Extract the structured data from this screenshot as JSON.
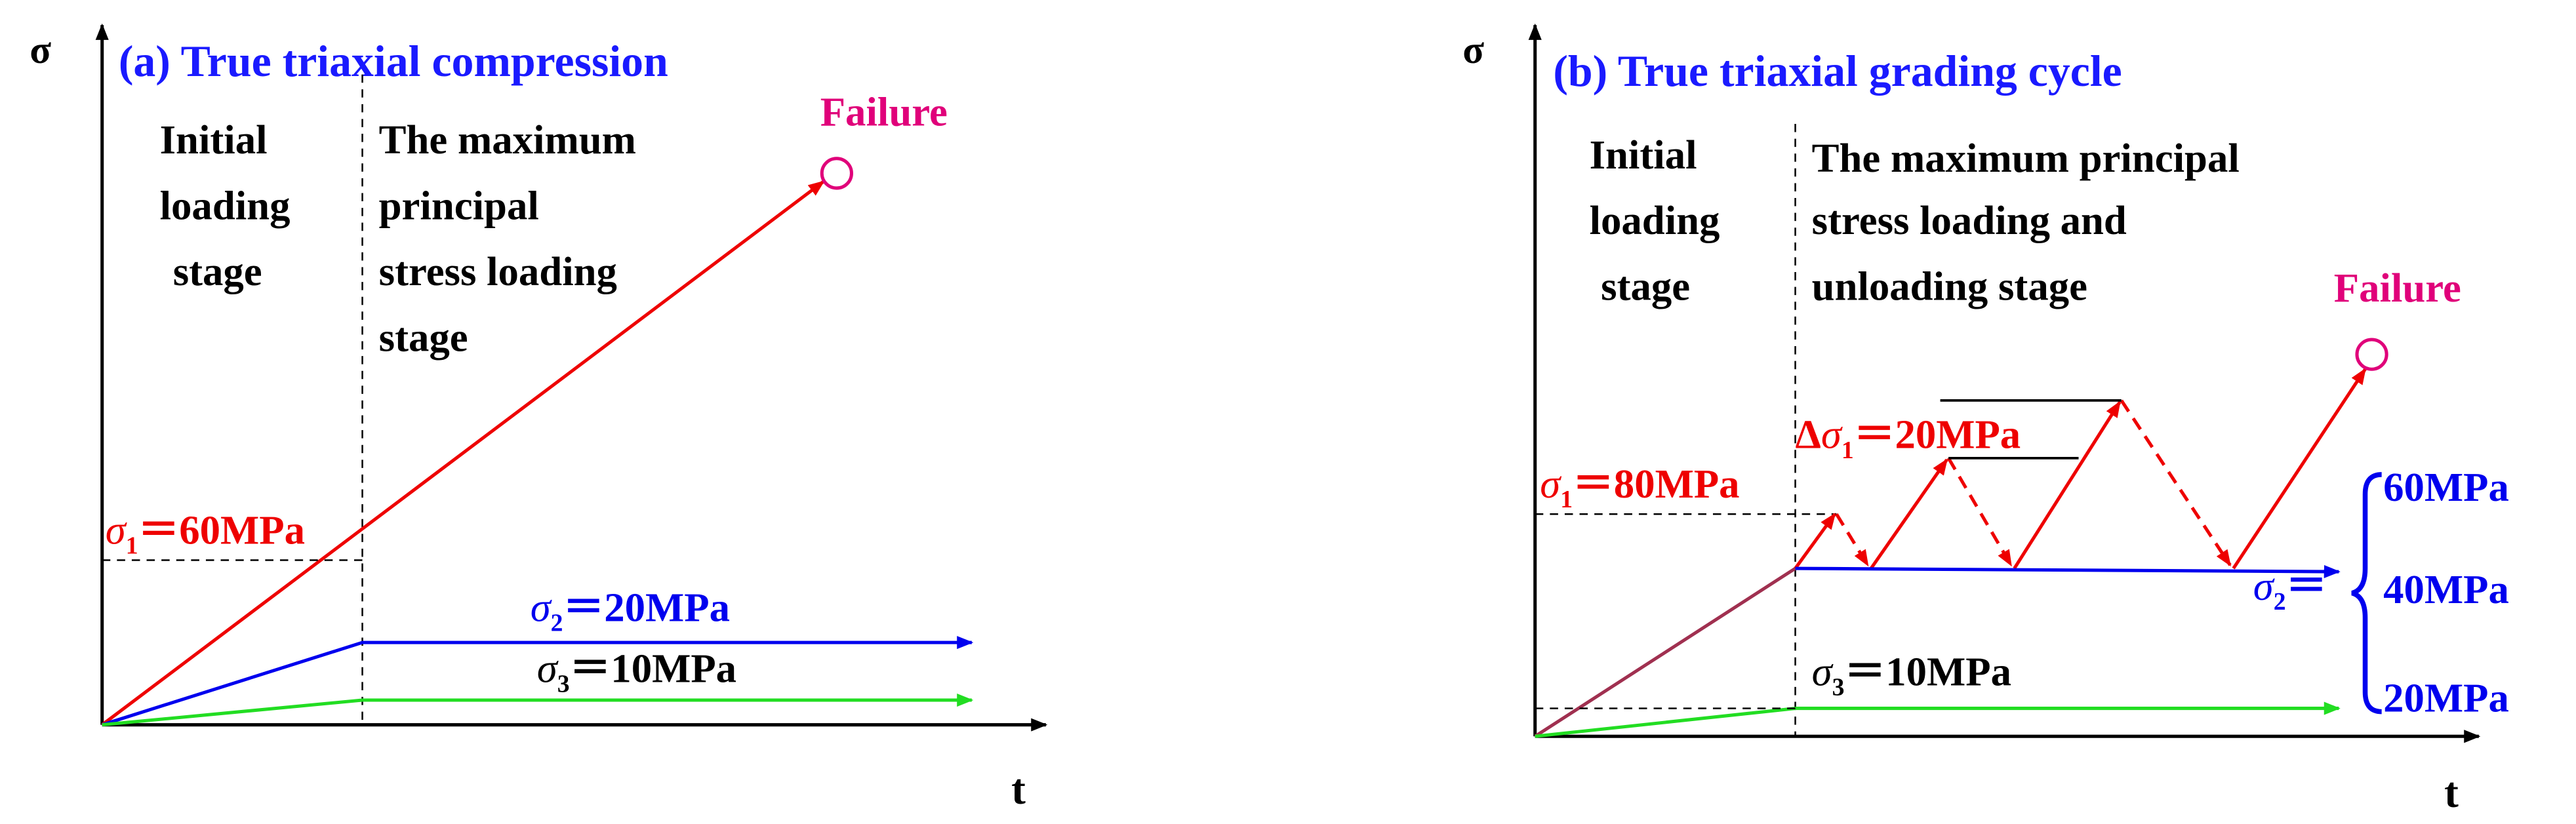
{
  "panel_a": {
    "title": "(a) True triaxial compression",
    "y_axis_label": "σ",
    "x_axis_label": "t",
    "stage1": [
      "Initial",
      "loading",
      "stage"
    ],
    "stage2": [
      "The maximum",
      "principal",
      "stress loading",
      "stage"
    ],
    "failure": "Failure",
    "sigma1": {
      "symbol": "σ",
      "sub": "1",
      "text": "＝60MPa"
    },
    "sigma2": {
      "symbol": "σ",
      "sub": "2",
      "text": "＝20MPa"
    },
    "sigma3": {
      "symbol": "σ",
      "sub": "3",
      "text": "＝10MPa"
    }
  },
  "panel_b": {
    "title": "(b) True triaxial grading cycle",
    "y_axis_label": "σ",
    "x_axis_label": "t",
    "stage1": [
      "Initial",
      "loading",
      "stage"
    ],
    "stage2": [
      "The maximum principal",
      "stress loading and",
      "unloading stage"
    ],
    "failure": "Failure",
    "delta_sigma1": {
      "prefix": "Δ",
      "symbol": "σ",
      "sub": "1",
      "text": "＝20MPa"
    },
    "sigma1": {
      "symbol": "σ",
      "sub": "1",
      "text": "＝80MPa"
    },
    "sigma2": {
      "symbol": "σ",
      "sub": "2",
      "text": "＝"
    },
    "sigma2_values": [
      "60MPa",
      "40MPa",
      "20MPa"
    ],
    "sigma3": {
      "symbol": "σ",
      "sub": "3",
      "text": "＝10MPa"
    }
  }
}
